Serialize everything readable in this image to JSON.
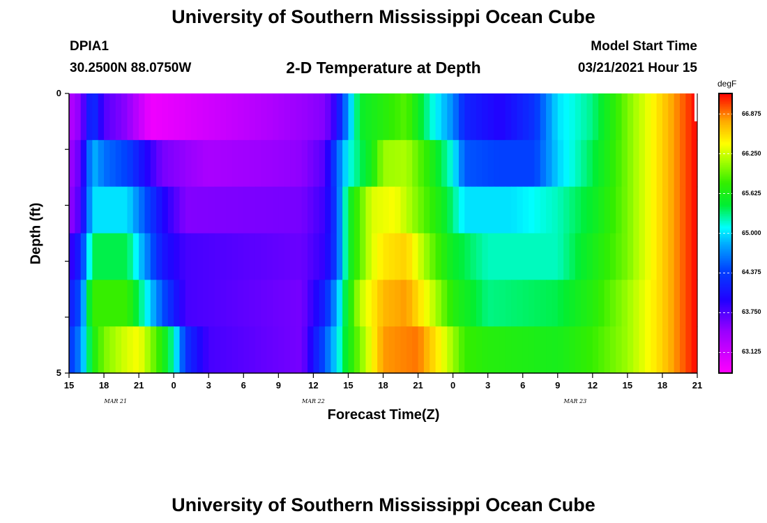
{
  "header": {
    "title_top": "University of Southern Mississippi Ocean Cube",
    "title_bottom": "University of Southern Mississippi Ocean Cube",
    "station_id": "DPIA1",
    "station_coords": "30.2500N 88.0750W",
    "plot_title": "2-D Temperature at Depth",
    "model_start_label": "Model Start Time",
    "model_start_value": "03/21/2021 Hour 15"
  },
  "chart_data": {
    "type": "heatmap",
    "title": "2-D Temperature at Depth",
    "xlabel": "Forecast Time(Z)",
    "ylabel": "Depth (ft)",
    "colorbar_label": "degF",
    "x_tick_labels": [
      "15",
      "18",
      "21",
      "0",
      "3",
      "6",
      "9",
      "12",
      "15",
      "18",
      "21",
      "0",
      "3",
      "6",
      "9",
      "12",
      "15",
      "18",
      "21"
    ],
    "x_hours_from_start": [
      0,
      3,
      6,
      9,
      12,
      15,
      18,
      21,
      24,
      27,
      30,
      33,
      36,
      39,
      42,
      45,
      48,
      51,
      54
    ],
    "date_labels": [
      {
        "text": "MAR 21",
        "hour": 4
      },
      {
        "text": "MAR 22",
        "hour": 21
      },
      {
        "text": "MAR 23",
        "hour": 43.5
      }
    ],
    "y_tick_labels": [
      "0",
      "5"
    ],
    "ylim": [
      0,
      5
    ],
    "depth_layers": [
      0,
      1,
      2,
      3,
      4,
      5
    ],
    "colorbar_ticks": [
      66.875,
      66.25,
      65.625,
      65.0,
      64.375,
      63.75,
      63.125
    ],
    "vmin": 62.8,
    "vmax": 67.2,
    "series": [
      {
        "name": "0 ft",
        "knots": [
          [
            0,
            63.25
          ],
          [
            1,
            63.55
          ],
          [
            2,
            64.35
          ],
          [
            3,
            63.75
          ],
          [
            5,
            63.5
          ],
          [
            7,
            62.9
          ],
          [
            17,
            63.3
          ],
          [
            22,
            63.55
          ],
          [
            23,
            63.95
          ],
          [
            24,
            64.8
          ],
          [
            25,
            65.5
          ],
          [
            27,
            65.7
          ],
          [
            29,
            65.9
          ],
          [
            31,
            65.2
          ],
          [
            33,
            64.7
          ],
          [
            34,
            64.2
          ],
          [
            37,
            63.95
          ],
          [
            40,
            64.3
          ],
          [
            42,
            65.0
          ],
          [
            45,
            65.3
          ],
          [
            48,
            66.0
          ],
          [
            51,
            66.6
          ],
          [
            54,
            67.2
          ]
        ]
      },
      {
        "name": "1 ft",
        "knots": [
          [
            0,
            63.4
          ],
          [
            1,
            63.7
          ],
          [
            2,
            64.9
          ],
          [
            3,
            64.6
          ],
          [
            5,
            64.4
          ],
          [
            8,
            63.6
          ],
          [
            12,
            63.35
          ],
          [
            20,
            63.5
          ],
          [
            22,
            63.75
          ],
          [
            23,
            64.5
          ],
          [
            24,
            65.1
          ],
          [
            26,
            65.6
          ],
          [
            27,
            66.1
          ],
          [
            29,
            66.15
          ],
          [
            31,
            65.7
          ],
          [
            33,
            65.1
          ],
          [
            34,
            64.5
          ],
          [
            37,
            64.4
          ],
          [
            40,
            64.4
          ],
          [
            42,
            64.95
          ],
          [
            45,
            65.4
          ],
          [
            48,
            66.0
          ],
          [
            51,
            66.6
          ],
          [
            54,
            67.2
          ]
        ]
      },
      {
        "name": "2 ft",
        "knots": [
          [
            0,
            63.45
          ],
          [
            1,
            63.8
          ],
          [
            2,
            65.0
          ],
          [
            5,
            65.0
          ],
          [
            8,
            64.0
          ],
          [
            10,
            63.55
          ],
          [
            20,
            63.6
          ],
          [
            22,
            63.85
          ],
          [
            23,
            64.4
          ],
          [
            24,
            65.5
          ],
          [
            26,
            66.3
          ],
          [
            28,
            66.4
          ],
          [
            30,
            66.0
          ],
          [
            32,
            65.6
          ],
          [
            34,
            65.0
          ],
          [
            38,
            65.0
          ],
          [
            42,
            65.2
          ],
          [
            45,
            65.5
          ],
          [
            48,
            66.0
          ],
          [
            51,
            66.6
          ],
          [
            54,
            67.2
          ]
        ]
      },
      {
        "name": "3 ft",
        "knots": [
          [
            0,
            63.8
          ],
          [
            1,
            64.2
          ],
          [
            2,
            65.4
          ],
          [
            5,
            65.4
          ],
          [
            8,
            64.1
          ],
          [
            10,
            63.8
          ],
          [
            20,
            63.65
          ],
          [
            22,
            63.9
          ],
          [
            23,
            64.4
          ],
          [
            24,
            65.5
          ],
          [
            26,
            66.3
          ],
          [
            27,
            66.5
          ],
          [
            29,
            66.6
          ],
          [
            31,
            66.0
          ],
          [
            33,
            65.5
          ],
          [
            36,
            65.2
          ],
          [
            42,
            65.2
          ],
          [
            45,
            65.6
          ],
          [
            48,
            66.0
          ],
          [
            51,
            66.6
          ],
          [
            54,
            67.2
          ]
        ]
      },
      {
        "name": "4 ft",
        "knots": [
          [
            0,
            64.1
          ],
          [
            1,
            64.5
          ],
          [
            2,
            65.8
          ],
          [
            5,
            65.8
          ],
          [
            8,
            64.5
          ],
          [
            10,
            63.8
          ],
          [
            20,
            63.6
          ],
          [
            22,
            64.2
          ],
          [
            23,
            64.8
          ],
          [
            24,
            65.6
          ],
          [
            25,
            66.2
          ],
          [
            27,
            66.7
          ],
          [
            29,
            66.8
          ],
          [
            31,
            66.3
          ],
          [
            33,
            65.7
          ],
          [
            36,
            65.3
          ],
          [
            42,
            65.4
          ],
          [
            45,
            65.7
          ],
          [
            48,
            66.1
          ],
          [
            51,
            66.6
          ],
          [
            54,
            67.2
          ]
        ]
      },
      {
        "name": "5 ft",
        "knots": [
          [
            0,
            64.3
          ],
          [
            1,
            64.7
          ],
          [
            2,
            65.6
          ],
          [
            3,
            66.0
          ],
          [
            5,
            66.3
          ],
          [
            6,
            66.4
          ],
          [
            8,
            65.7
          ],
          [
            9,
            65.2
          ],
          [
            10,
            64.3
          ],
          [
            12,
            63.8
          ],
          [
            20,
            63.6
          ],
          [
            22,
            64.5
          ],
          [
            23,
            65.0
          ],
          [
            24,
            65.6
          ],
          [
            26,
            66.4
          ],
          [
            27,
            66.8
          ],
          [
            30,
            66.9
          ],
          [
            32,
            66.4
          ],
          [
            34,
            65.8
          ],
          [
            36,
            65.7
          ],
          [
            42,
            65.6
          ],
          [
            45,
            65.8
          ],
          [
            48,
            66.1
          ],
          [
            51,
            66.6
          ],
          [
            54,
            67.2
          ]
        ]
      }
    ]
  }
}
